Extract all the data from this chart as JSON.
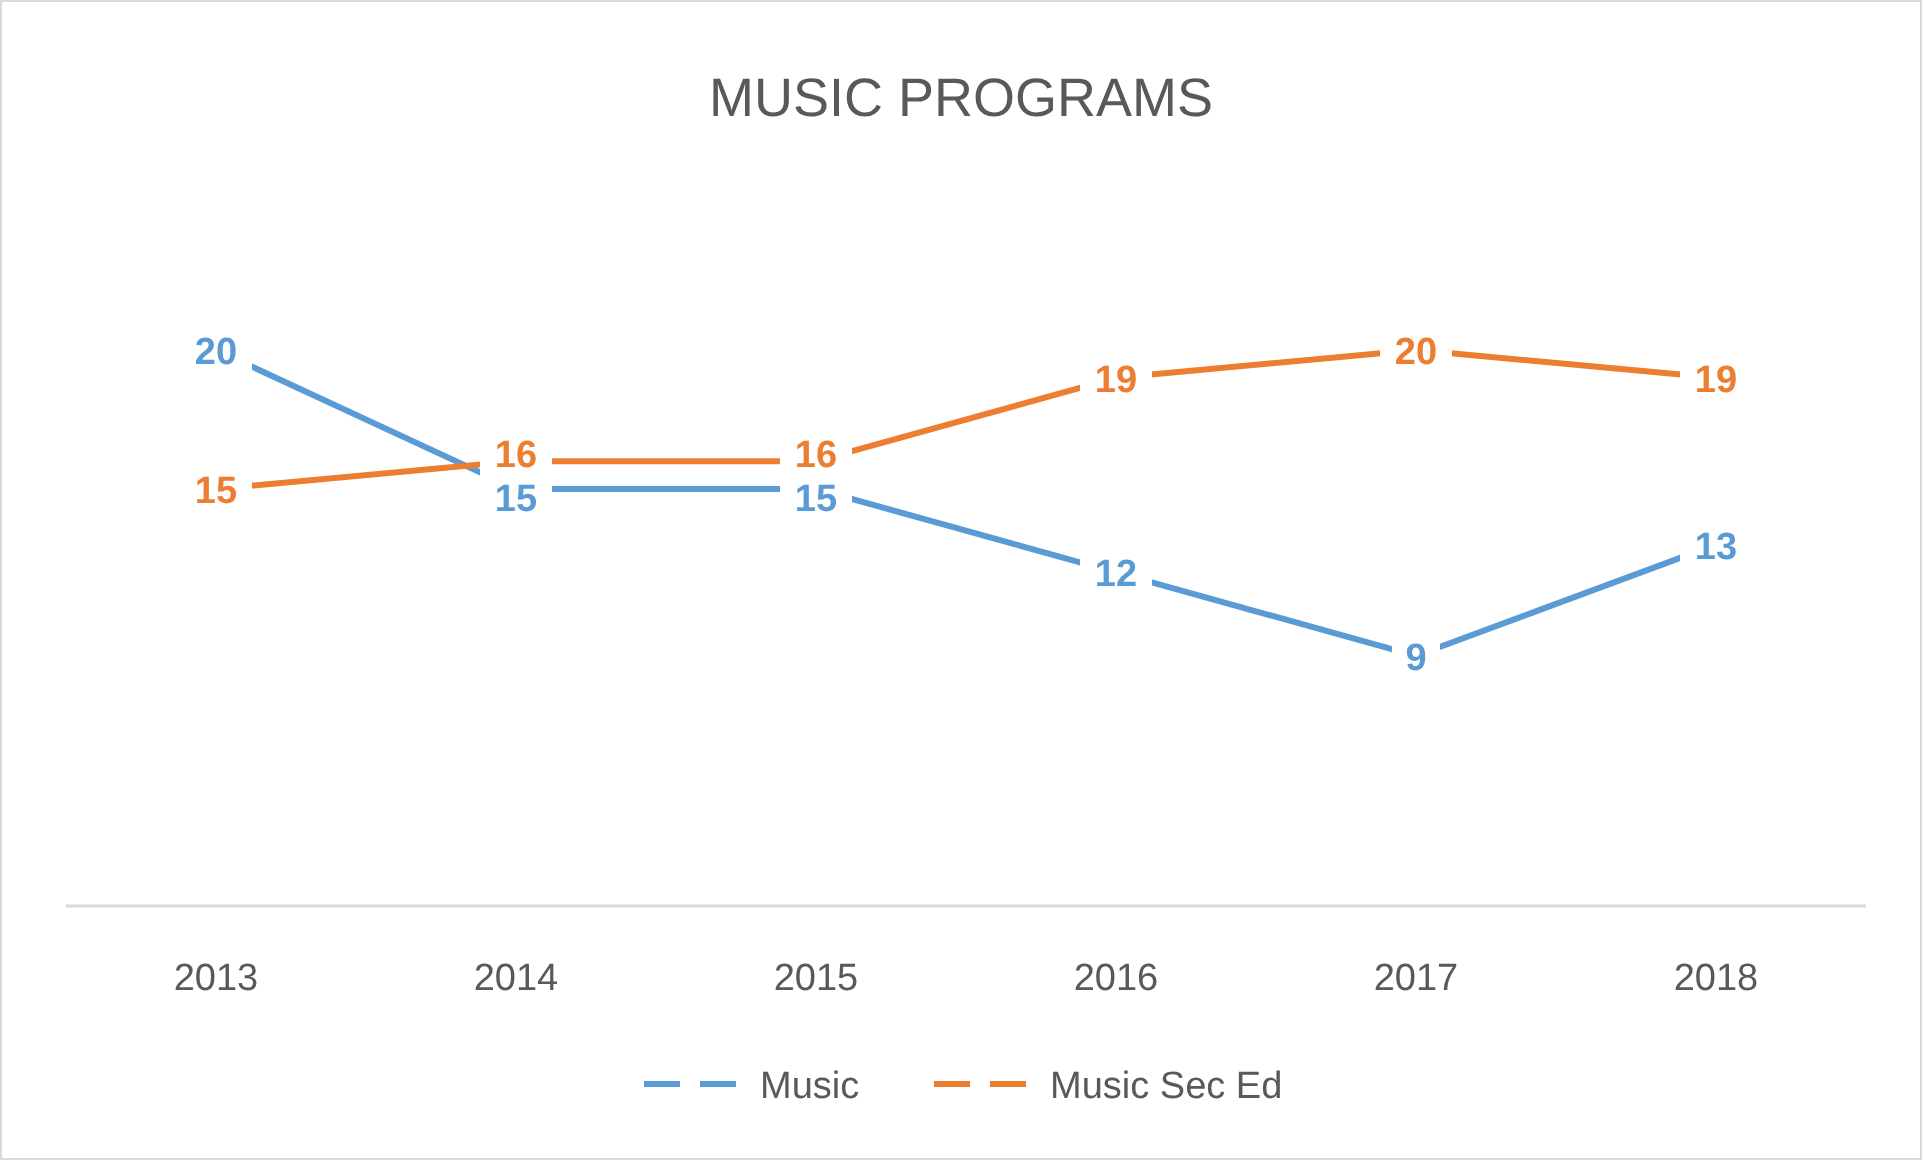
{
  "chart_data": {
    "type": "line",
    "title": "MUSIC PROGRAMS",
    "categories": [
      "2013",
      "2014",
      "2015",
      "2016",
      "2017",
      "2018"
    ],
    "series": [
      {
        "name": "Music",
        "color": "#5b9bd5",
        "values": [
          20,
          15,
          15,
          12,
          9,
          13
        ]
      },
      {
        "name": "Music Sec Ed",
        "color": "#ed7d31",
        "values": [
          15,
          16,
          16,
          19,
          20,
          19
        ]
      }
    ],
    "data_labels": true,
    "legend": "bottom"
  }
}
